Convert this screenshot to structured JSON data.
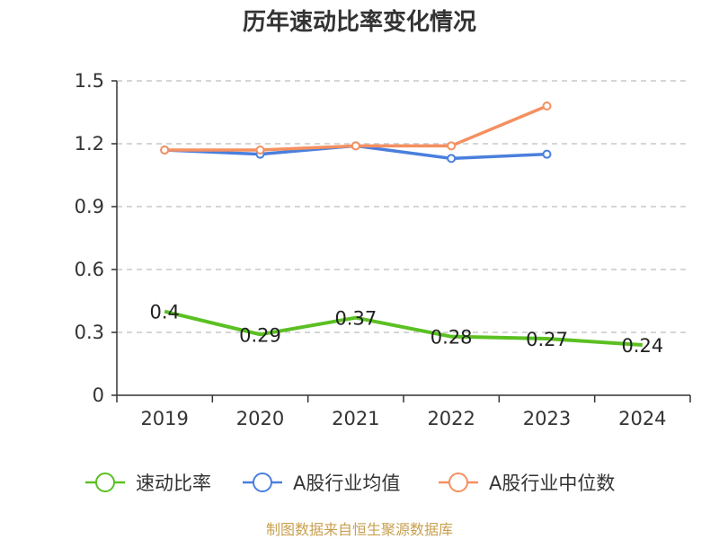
{
  "title": "历年速动比率变化情况",
  "source": "制图数据来自恒生聚源数据库",
  "chart_data": {
    "type": "line",
    "title": "历年速动比率变化情况",
    "categories": [
      "2019",
      "2020",
      "2021",
      "2022",
      "2023",
      "2024"
    ],
    "ylim": [
      0,
      1.5
    ],
    "yticks": [
      "0",
      "0.3",
      "0.6",
      "0.9",
      "1.2",
      "1.5"
    ],
    "grid": true,
    "legend_position": "bottom",
    "series": [
      {
        "name": "速动比率",
        "color": "#5bc022",
        "values": [
          0.4,
          0.29,
          0.37,
          0.28,
          0.27,
          0.24
        ],
        "labels": [
          "0.4",
          "0.29",
          "0.37",
          "0.28",
          "0.27",
          "0.24"
        ]
      },
      {
        "name": "A股行业均值",
        "color": "#4a7fdd",
        "values": [
          1.17,
          1.15,
          1.19,
          1.13,
          1.15,
          null
        ]
      },
      {
        "name": "A股行业中位数",
        "color": "#f59060",
        "values": [
          1.17,
          1.17,
          1.19,
          1.19,
          1.38,
          null
        ]
      }
    ]
  }
}
